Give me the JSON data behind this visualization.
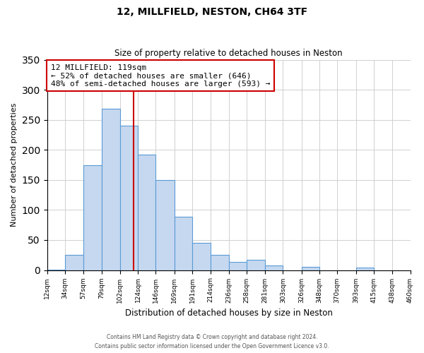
{
  "title": "12, MILLFIELD, NESTON, CH64 3TF",
  "subtitle": "Size of property relative to detached houses in Neston",
  "xlabel": "Distribution of detached houses by size in Neston",
  "ylabel": "Number of detached properties",
  "bar_color": "#c5d8f0",
  "bar_edge_color": "#5b9bd5",
  "bin_edges": [
    12,
    34,
    57,
    79,
    102,
    124,
    146,
    169,
    191,
    214,
    236,
    258,
    281,
    303,
    326,
    348,
    370,
    393,
    415,
    438,
    460
  ],
  "bar_heights": [
    1,
    25,
    175,
    268,
    240,
    192,
    150,
    89,
    45,
    25,
    14,
    17,
    8,
    0,
    5,
    0,
    0,
    4,
    0,
    0
  ],
  "x_tick_labels": [
    "12sqm",
    "34sqm",
    "57sqm",
    "79sqm",
    "102sqm",
    "124sqm",
    "146sqm",
    "169sqm",
    "191sqm",
    "214sqm",
    "236sqm",
    "258sqm",
    "281sqm",
    "303sqm",
    "326sqm",
    "348sqm",
    "370sqm",
    "393sqm",
    "415sqm",
    "438sqm",
    "460sqm"
  ],
  "vline_x": 119,
  "vline_color": "#cc0000",
  "annotation_title": "12 MILLFIELD: 119sqm",
  "annotation_line1": "← 52% of detached houses are smaller (646)",
  "annotation_line2": "48% of semi-detached houses are larger (593) →",
  "annotation_box_color": "#ffffff",
  "annotation_box_edge": "#cc0000",
  "ylim": [
    0,
    350
  ],
  "footer1": "Contains HM Land Registry data © Crown copyright and database right 2024.",
  "footer2": "Contains public sector information licensed under the Open Government Licence v3.0.",
  "background_color": "#ffffff",
  "grid_color": "#d0d0d0"
}
